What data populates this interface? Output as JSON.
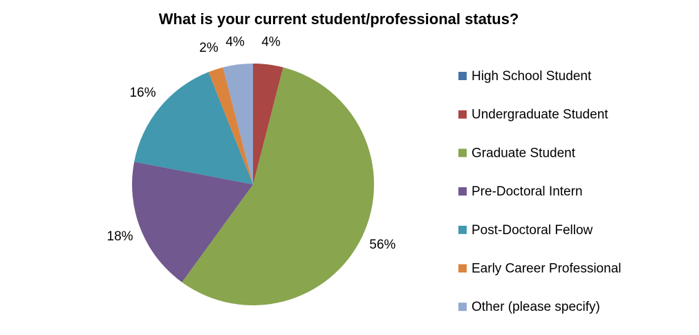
{
  "chart_data": {
    "type": "pie",
    "title": "What is your current student/professional status?",
    "categories": [
      "High School Student",
      "Undergraduate Student",
      "Graduate Student",
      "Pre-Doctoral Intern",
      "Post-Doctoral Fellow",
      "Early Career Professional",
      "Other (please specify)"
    ],
    "values": [
      0,
      4,
      56,
      18,
      16,
      2,
      4
    ],
    "value_labels": [
      null,
      "4%",
      "56%",
      "18%",
      "16%",
      "2%",
      "4%"
    ],
    "colors": [
      "#4572a7",
      "#aa4643",
      "#89a54e",
      "#71588f",
      "#4198af",
      "#db843d",
      "#93a9cf"
    ],
    "legend": "right"
  }
}
